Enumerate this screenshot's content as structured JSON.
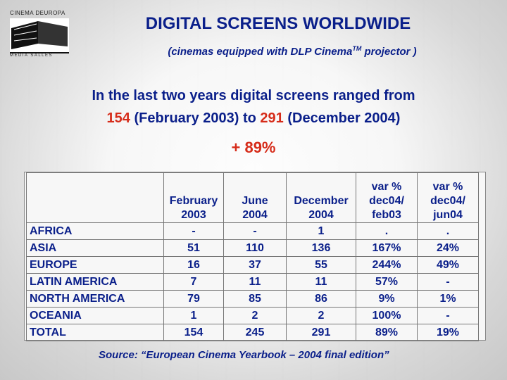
{
  "logo": {
    "top_text": "CINEMA DEUROPA",
    "bottom_text": "MEDIA SALLES"
  },
  "title": "DIGITAL SCREENS WORLDWIDE",
  "subtitle": "(cinemas equipped with DLP Cinema",
  "subtitle_tm": "TM",
  "subtitle_end": " projector )",
  "intro": {
    "line1": "In the last two years digital screens ranged from",
    "from_value": "154",
    "from_date": " (February 2003) to ",
    "to_value": "291",
    "to_date": " (December 2004)"
  },
  "growth": "+ 89%",
  "table": {
    "headers": [
      [
        "February",
        "2003"
      ],
      [
        "June",
        "2004"
      ],
      [
        "December",
        "2004"
      ],
      [
        "var %",
        "dec04/",
        "feb03"
      ],
      [
        "var %",
        "dec04/",
        "jun04"
      ]
    ],
    "rows": [
      {
        "region": "AFRICA",
        "values": [
          "-",
          "-",
          "1",
          ".",
          "."
        ]
      },
      {
        "region": "ASIA",
        "values": [
          "51",
          "110",
          "136",
          "167%",
          "24%"
        ]
      },
      {
        "region": "EUROPE",
        "values": [
          "16",
          "37",
          "55",
          "244%",
          "49%"
        ]
      },
      {
        "region": "LATIN AMERICA",
        "values": [
          "7",
          "11",
          "11",
          "57%",
          "-"
        ]
      },
      {
        "region": "NORTH AMERICA",
        "values": [
          "79",
          "85",
          "86",
          "9%",
          "1%"
        ]
      },
      {
        "region": "OCEANIA",
        "values": [
          "1",
          "2",
          "2",
          "100%",
          "-"
        ]
      },
      {
        "region": "TOTAL",
        "values": [
          "154",
          "245",
          "291",
          "89%",
          "19%"
        ]
      }
    ]
  },
  "source": "Source: “European Cinema Yearbook – 2004 final edition”"
}
